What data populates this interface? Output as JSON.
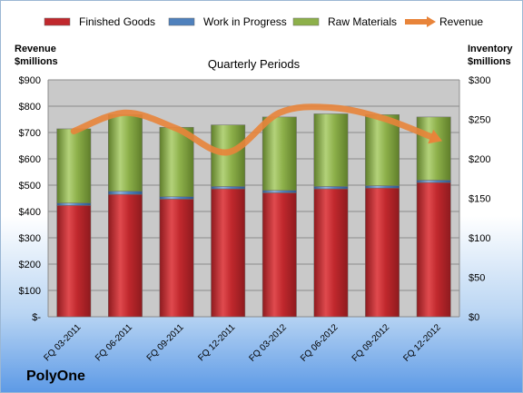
{
  "company": "PolyOne",
  "chart_data": {
    "type": "bar",
    "stacked": true,
    "title": "Quarterly Periods",
    "left_axis_label": [
      "Revenue",
      "$millions"
    ],
    "right_axis_label": [
      "Inventory",
      "$millions"
    ],
    "categories": [
      "FQ 03-2011",
      "FQ 06-2011",
      "FQ 09-2011",
      "FQ 12-2011",
      "FQ 03-2012",
      "FQ 06-2012",
      "FQ 09-2012",
      "FQ 12-2012"
    ],
    "series": [
      {
        "name": "Finished Goods",
        "color": "#c0282d",
        "axis": "right",
        "values": [
          141,
          155,
          149,
          162,
          157,
          162,
          163,
          170
        ]
      },
      {
        "name": "Work in Progress",
        "color": "#4f81bd",
        "axis": "right",
        "values": [
          3,
          4,
          3,
          3,
          3,
          3,
          3,
          3
        ]
      },
      {
        "name": "Raw Materials",
        "color": "#8db04a",
        "axis": "right",
        "values": [
          94,
          97,
          88,
          78,
          93,
          92,
          90,
          80
        ]
      },
      {
        "name": "Revenue",
        "color": "#e8843a",
        "axis": "left",
        "type": "line",
        "values": [
          705,
          775,
          715,
          625,
          775,
          795,
          755,
          680
        ]
      }
    ],
    "left_axis": {
      "min": 0,
      "max": 900,
      "step": 100,
      "ticks": [
        "$-",
        "$100",
        "$200",
        "$300",
        "$400",
        "$500",
        "$600",
        "$700",
        "$800",
        "$900"
      ]
    },
    "right_axis": {
      "min": 0,
      "max": 300,
      "step": 50,
      "ticks": [
        "$0",
        "$50",
        "$100",
        "$150",
        "$200",
        "$250",
        "$300"
      ]
    },
    "legend_position": "top",
    "grid": true
  }
}
